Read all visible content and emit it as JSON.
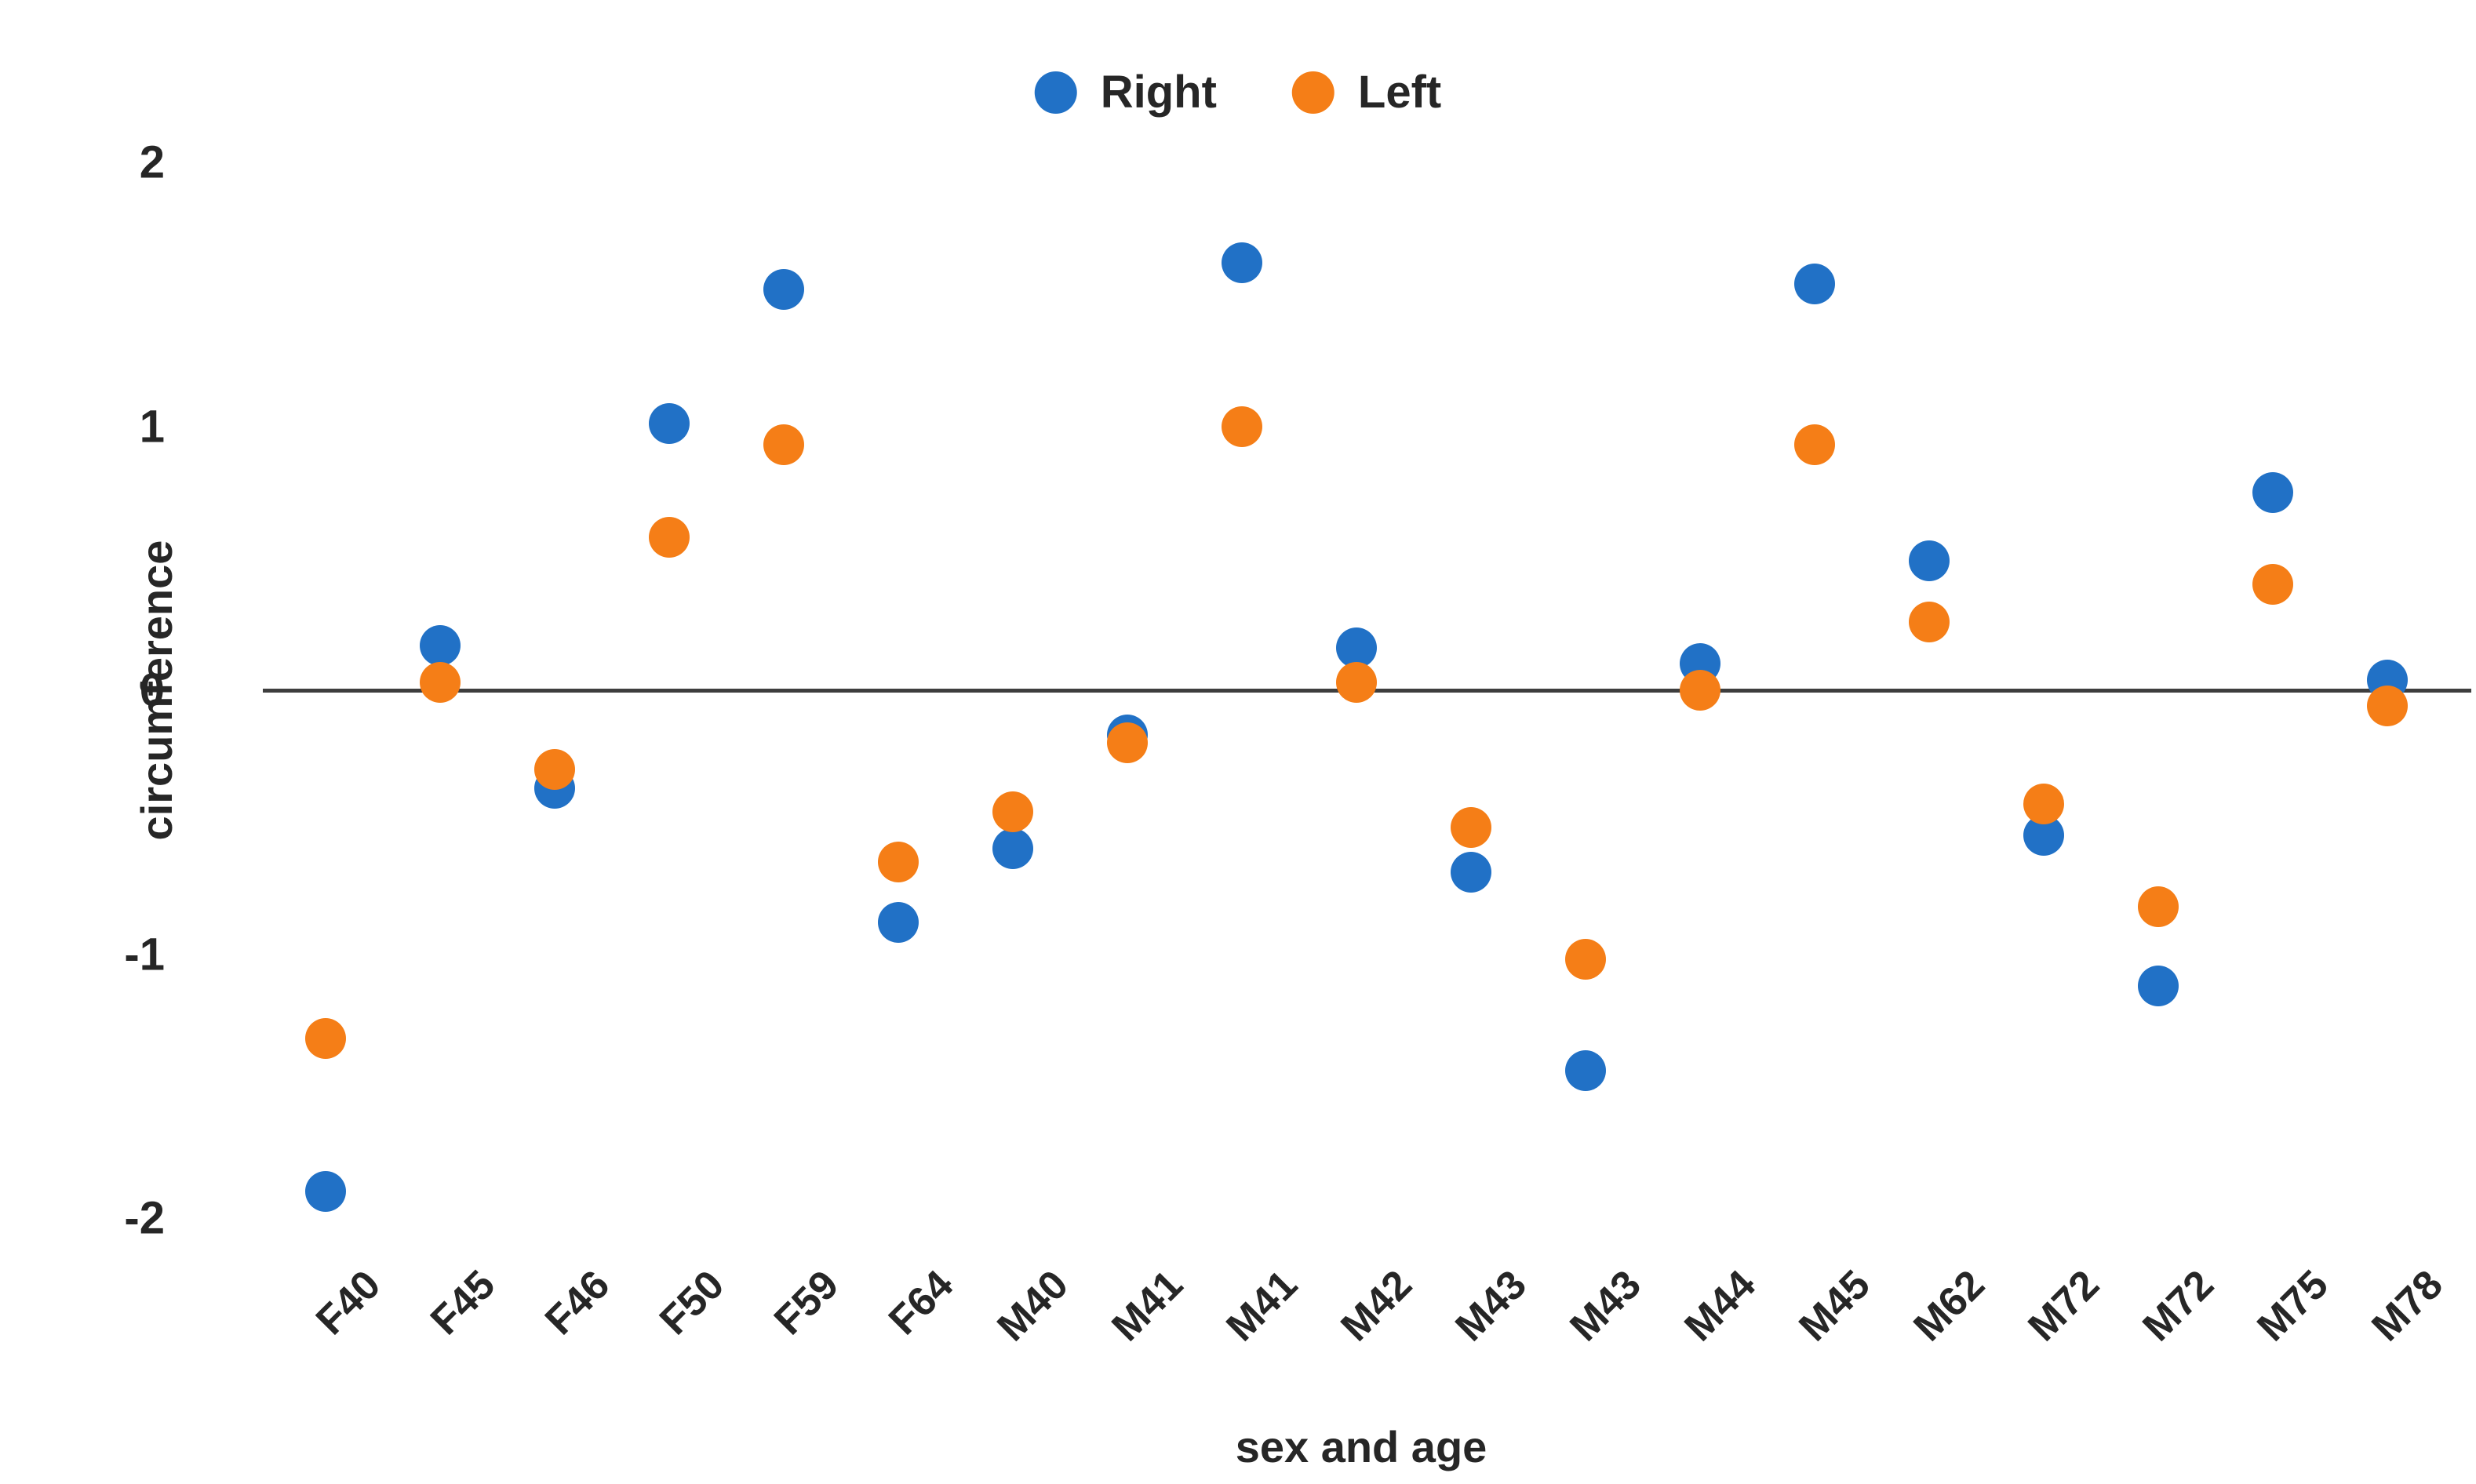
{
  "chart_data": {
    "type": "scatter",
    "title": "",
    "xlabel": "sex and age",
    "ylabel": "circumference",
    "ylim": [
      -2,
      2
    ],
    "y_ticks": [
      "2",
      "1",
      "0",
      "-1",
      "-2"
    ],
    "y_tick_values": [
      2,
      1,
      0,
      -1,
      -2
    ],
    "grid": false,
    "legend_position": "top-center",
    "zero_line": true,
    "categories": [
      "F40",
      "F45",
      "F46",
      "F50",
      "F59",
      "F64",
      "M40",
      "M41",
      "M41",
      "M42",
      "M43",
      "M43",
      "M44",
      "M45",
      "M62",
      "M72",
      "M72",
      "M75",
      "M78"
    ],
    "series": [
      {
        "name": "Right",
        "color": "#2171C6",
        "values": [
          -1.9,
          0.17,
          -0.37,
          1.01,
          1.52,
          -0.88,
          -0.6,
          -0.17,
          1.62,
          0.16,
          -0.69,
          -1.44,
          0.1,
          1.54,
          0.49,
          -0.55,
          -1.12,
          0.75,
          0.04
        ]
      },
      {
        "name": "Left",
        "color": "#F57E17",
        "values": [
          -1.32,
          0.03,
          -0.3,
          0.58,
          0.93,
          -0.65,
          -0.46,
          -0.2,
          1.0,
          0.03,
          -0.52,
          -1.02,
          0.0,
          0.93,
          0.26,
          -0.43,
          -0.82,
          0.4,
          -0.06
        ]
      }
    ]
  },
  "colors": {
    "right_series": "#2171C6",
    "left_series": "#F57E17",
    "axis_line": "#3e3e3e",
    "text": "#262626",
    "background": "#ffffff"
  }
}
